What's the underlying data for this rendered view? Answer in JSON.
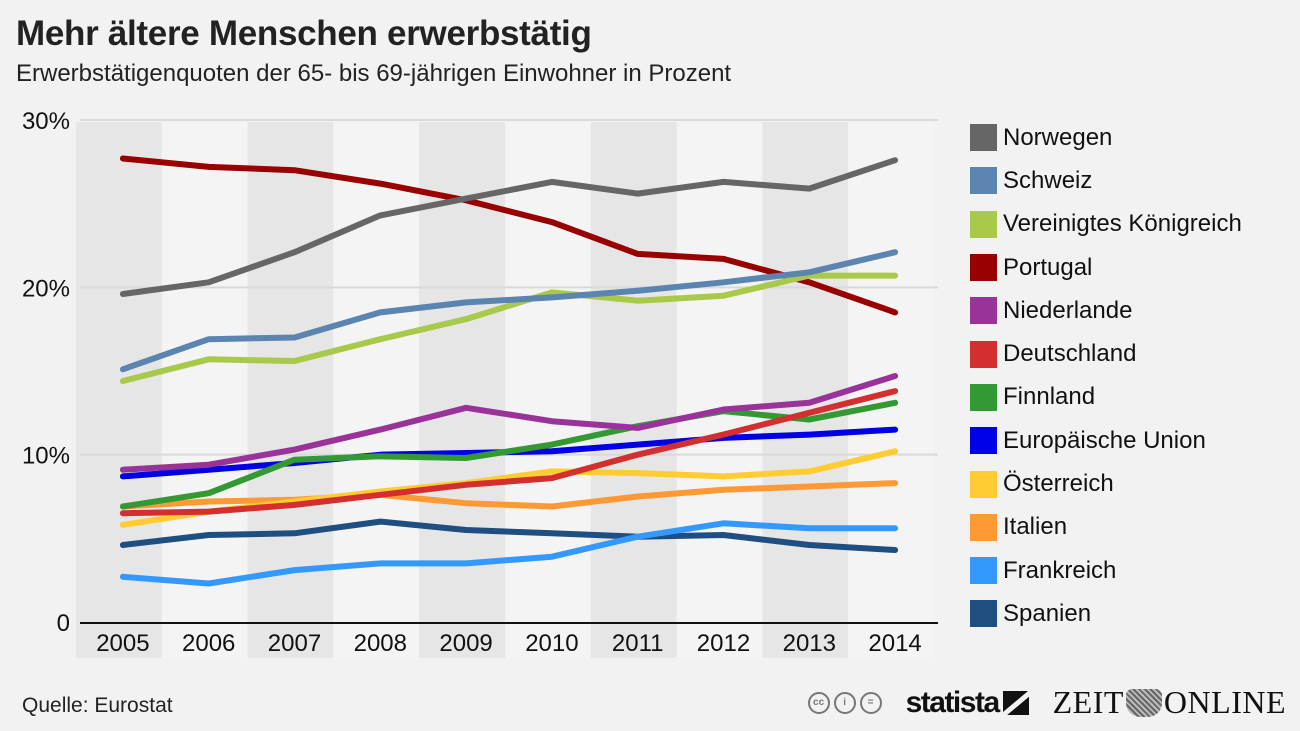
{
  "header": {
    "title": "Mehr ältere Menschen erwerbstätig",
    "subtitle": "Erwerbstätigenquoten der 65- bis 69-jährigen Einwohner in Prozent"
  },
  "footer": {
    "source": "Quelle: Eurostat",
    "license_icons": [
      "cc-icon",
      "by-icon",
      "nd-icon"
    ],
    "license_glyphs": [
      "cc",
      "i",
      "="
    ],
    "brand_statista": "statista",
    "brand_zeit_left": "ZEIT",
    "brand_zeit_right": "ONLINE"
  },
  "chart_data": {
    "type": "line",
    "title": "Mehr ältere Menschen erwerbstätig",
    "subtitle": "Erwerbstätigenquoten der 65- bis 69-jährigen Einwohner in Prozent",
    "xlabel": "",
    "ylabel": "",
    "x": [
      "2005",
      "2006",
      "2007",
      "2008",
      "2009",
      "2010",
      "2011",
      "2012",
      "2013",
      "2014"
    ],
    "ylim": [
      0,
      30
    ],
    "yticks": [
      0,
      10,
      20,
      30
    ],
    "ytick_labels": [
      "0",
      "10%",
      "20%",
      "30%"
    ],
    "grid": true,
    "alternating_column_bands": true,
    "legend_position": "right",
    "series": [
      {
        "name": "Norwegen",
        "color": "#666666",
        "values": [
          19.6,
          20.3,
          22.1,
          24.3,
          25.3,
          26.3,
          25.6,
          26.3,
          25.9,
          27.6
        ]
      },
      {
        "name": "Schweiz",
        "color": "#5b84b1",
        "values": [
          15.1,
          16.9,
          17.0,
          18.5,
          19.1,
          19.4,
          19.8,
          20.3,
          20.9,
          22.1
        ]
      },
      {
        "name": "Vereinigtes Königreich",
        "color": "#a8c94a",
        "values": [
          14.4,
          15.7,
          15.6,
          16.9,
          18.1,
          19.7,
          19.2,
          19.5,
          20.7,
          20.7
        ]
      },
      {
        "name": "Portugal",
        "color": "#990000",
        "values": [
          27.7,
          27.2,
          27.0,
          26.2,
          25.2,
          23.9,
          22.0,
          21.7,
          20.3,
          18.5
        ]
      },
      {
        "name": "Niederlande",
        "color": "#993399",
        "values": [
          9.1,
          9.4,
          10.3,
          11.5,
          12.8,
          12.0,
          11.6,
          12.7,
          13.1,
          14.7
        ]
      },
      {
        "name": "Deutschland",
        "color": "#d32f2f",
        "values": [
          6.5,
          6.6,
          7.0,
          7.6,
          8.2,
          8.6,
          10.0,
          11.2,
          12.5,
          13.8
        ]
      },
      {
        "name": "Finnland",
        "color": "#339933",
        "values": [
          6.9,
          7.7,
          9.7,
          9.9,
          9.8,
          10.6,
          11.7,
          12.6,
          12.1,
          13.1
        ]
      },
      {
        "name": "Europäische Union",
        "color": "#0000e6",
        "values": [
          8.7,
          9.1,
          9.5,
          10.0,
          10.1,
          10.2,
          10.6,
          11.0,
          11.2,
          11.5
        ]
      },
      {
        "name": "Österreich",
        "color": "#ffcc33",
        "values": [
          5.8,
          6.6,
          7.2,
          7.8,
          8.3,
          9.0,
          8.9,
          8.7,
          9.0,
          10.2
        ]
      },
      {
        "name": "Italien",
        "color": "#ff9933",
        "values": [
          6.9,
          7.2,
          7.3,
          7.6,
          7.1,
          6.9,
          7.5,
          7.9,
          8.1,
          8.3
        ]
      },
      {
        "name": "Frankreich",
        "color": "#3399ff",
        "values": [
          2.7,
          2.3,
          3.1,
          3.5,
          3.5,
          3.9,
          5.1,
          5.9,
          5.6,
          5.6
        ]
      },
      {
        "name": "Spanien",
        "color": "#1f4e80",
        "values": [
          4.6,
          5.2,
          5.3,
          6.0,
          5.5,
          5.3,
          5.1,
          5.2,
          4.6,
          4.3
        ]
      }
    ]
  }
}
